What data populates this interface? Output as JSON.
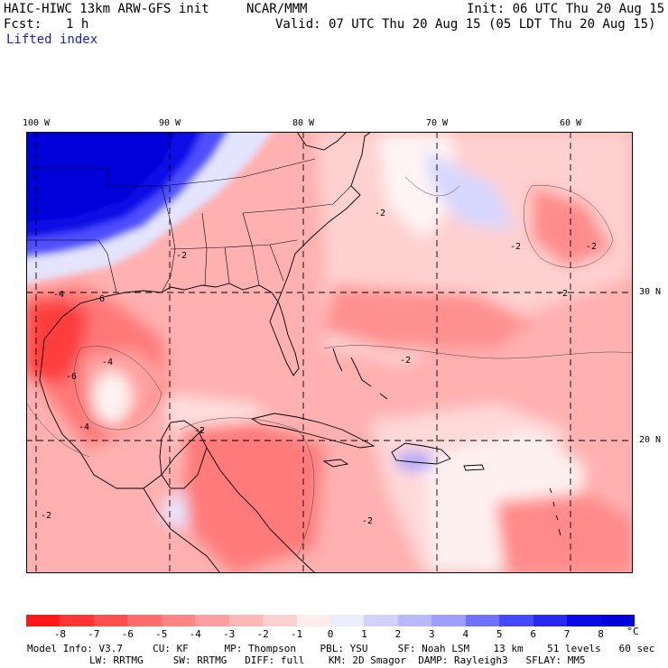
{
  "header": {
    "model": "HAIC-HIWC 13km ARW-GFS init",
    "org": "NCAR/MMM",
    "init": "Init: 06 UTC Thu 20 Aug 15",
    "fcst_label": "Fcst:",
    "fcst_value": "1 h",
    "valid": "Valid: 07 UTC Thu 20 Aug 15 (05 LDT Thu 20 Aug 15)",
    "field": "Lifted index"
  },
  "map": {
    "longitude_labels": [
      "100 W",
      "90 W",
      "80 W",
      "70 W",
      "60 W"
    ],
    "latitude_labels": [
      "30 N",
      "20 N"
    ],
    "contour_labels": [
      "-2",
      "-2",
      "-2",
      "-2",
      "-2",
      "-2",
      "-2",
      "-2",
      "-2",
      "-4",
      "-4",
      "-4",
      "-6",
      "-6"
    ]
  },
  "colorbar": {
    "ticks": [
      "-8",
      "-7",
      "-6",
      "-5",
      "-4",
      "-3",
      "-2",
      "-1",
      "0",
      "1",
      "2",
      "3",
      "4",
      "5",
      "6",
      "7",
      "8"
    ],
    "unit": "°C",
    "colors": [
      "#ff1a1a",
      "#ff3434",
      "#ff4e4e",
      "#ff6a6a",
      "#ff8484",
      "#ff9e9e",
      "#ffb8b8",
      "#ffd2d2",
      "#ffecec",
      "#ececff",
      "#d2d2ff",
      "#b8b8ff",
      "#9e9eff",
      "#7070ff",
      "#4848ff",
      "#2828f0",
      "#0a0ae6",
      "#0000d8"
    ]
  },
  "model_info": {
    "line1": "Model Info: V3.7     CU: KF      MP: Thompson    PBL: YSU     SF: Noah LSM    13 km    51 levels   60 sec",
    "line2": "LW: RRTMG     SW: RRTMG   DIFF: full    KM: 2D Smagor  DAMP: Rayleigh3   SFLAY: MM5"
  }
}
